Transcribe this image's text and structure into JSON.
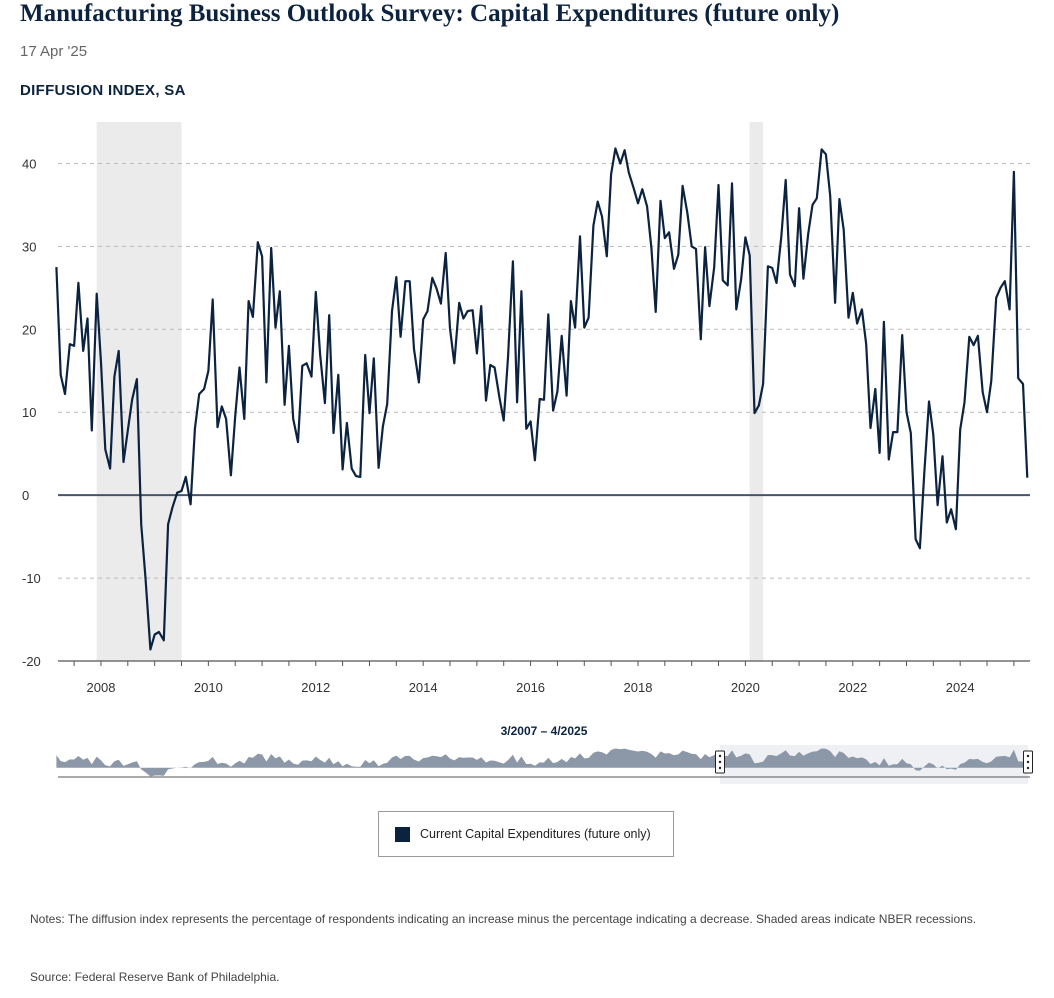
{
  "header": {
    "title": "Manufacturing Business Outlook Survey: Capital Expenditures (future only)",
    "date": "17 Apr '25",
    "subtitle": "DIFFUSION INDEX, SA"
  },
  "navigator": {
    "range_label": "3/2007 – 4/2025"
  },
  "legend": {
    "label": "Current Capital Expenditures (future only)"
  },
  "notes": "Notes: The diffusion index represents the percentage of respondents indicating an increase minus the percentage indicating a decrease. Shaded areas indicate NBER recessions.",
  "source": "Source: Federal Reserve Bank of Philadelphia.",
  "colors": {
    "line": "#0c2340",
    "recession": "#ebebeb",
    "grid": "#bbbbbb",
    "navigator": "#8c98a8",
    "zero_line": "#47556b"
  },
  "chart_data": {
    "type": "line",
    "title": "Manufacturing Business Outlook Survey: Capital Expenditures (future only)",
    "ylabel": "DIFFUSION INDEX, SA",
    "ylim": [
      -20,
      45
    ],
    "yticks": [
      40,
      30,
      20,
      10,
      0,
      -10,
      -20
    ],
    "xlim": [
      2007.2,
      2025.3
    ],
    "xticks": [
      2008,
      2010,
      2012,
      2014,
      2016,
      2018,
      2020,
      2022,
      2024
    ],
    "recessions": [
      [
        2007.92,
        2009.5
      ],
      [
        2020.08,
        2020.33
      ]
    ],
    "series": [
      {
        "name": "Current Capital Expenditures (future only)",
        "points": [
          [
            2007.17,
            27.5
          ],
          [
            2007.25,
            14.5
          ],
          [
            2007.33,
            12.2
          ],
          [
            2007.42,
            18.2
          ],
          [
            2007.5,
            18.0
          ],
          [
            2007.58,
            25.6
          ],
          [
            2007.67,
            17.4
          ],
          [
            2007.75,
            21.3
          ],
          [
            2007.83,
            7.8
          ],
          [
            2007.92,
            24.3
          ],
          [
            2008.0,
            16.0
          ],
          [
            2008.08,
            5.5
          ],
          [
            2008.17,
            3.2
          ],
          [
            2008.25,
            14.3
          ],
          [
            2008.33,
            17.4
          ],
          [
            2008.42,
            4.0
          ],
          [
            2008.5,
            7.8
          ],
          [
            2008.58,
            11.5
          ],
          [
            2008.67,
            14.0
          ],
          [
            2008.75,
            -3.5
          ],
          [
            2008.83,
            -10.0
          ],
          [
            2008.92,
            -18.6
          ],
          [
            2009.0,
            -16.8
          ],
          [
            2009.08,
            -16.5
          ],
          [
            2009.17,
            -17.5
          ],
          [
            2009.25,
            -3.5
          ],
          [
            2009.33,
            -1.5
          ],
          [
            2009.42,
            0.3
          ],
          [
            2009.5,
            0.5
          ],
          [
            2009.58,
            2.2
          ],
          [
            2009.67,
            -1.1
          ],
          [
            2009.75,
            8.0
          ],
          [
            2009.83,
            12.2
          ],
          [
            2009.92,
            12.8
          ],
          [
            2010.0,
            15.0
          ],
          [
            2010.08,
            23.6
          ],
          [
            2010.17,
            8.2
          ],
          [
            2010.25,
            10.7
          ],
          [
            2010.33,
            9.2
          ],
          [
            2010.42,
            2.4
          ],
          [
            2010.5,
            9.5
          ],
          [
            2010.58,
            15.4
          ],
          [
            2010.67,
            9.2
          ],
          [
            2010.75,
            23.4
          ],
          [
            2010.83,
            21.5
          ],
          [
            2010.92,
            30.5
          ],
          [
            2011.0,
            28.8
          ],
          [
            2011.08,
            13.6
          ],
          [
            2011.17,
            29.8
          ],
          [
            2011.25,
            20.2
          ],
          [
            2011.33,
            24.6
          ],
          [
            2011.42,
            10.9
          ],
          [
            2011.5,
            18.0
          ],
          [
            2011.58,
            9.2
          ],
          [
            2011.67,
            6.4
          ],
          [
            2011.75,
            15.6
          ],
          [
            2011.83,
            15.9
          ],
          [
            2011.92,
            14.3
          ],
          [
            2012.0,
            24.5
          ],
          [
            2012.08,
            17.0
          ],
          [
            2012.17,
            11.1
          ],
          [
            2012.25,
            21.7
          ],
          [
            2012.33,
            7.5
          ],
          [
            2012.42,
            14.5
          ],
          [
            2012.5,
            3.1
          ],
          [
            2012.58,
            8.7
          ],
          [
            2012.67,
            3.2
          ],
          [
            2012.75,
            2.3
          ],
          [
            2012.83,
            2.2
          ],
          [
            2012.92,
            16.9
          ],
          [
            2013.0,
            9.9
          ],
          [
            2013.08,
            16.5
          ],
          [
            2013.17,
            3.3
          ],
          [
            2013.25,
            8.3
          ],
          [
            2013.33,
            11.0
          ],
          [
            2013.42,
            22.2
          ],
          [
            2013.5,
            26.3
          ],
          [
            2013.58,
            19.1
          ],
          [
            2013.67,
            25.8
          ],
          [
            2013.75,
            25.8
          ],
          [
            2013.83,
            17.6
          ],
          [
            2013.92,
            13.6
          ],
          [
            2014.0,
            21.2
          ],
          [
            2014.08,
            22.2
          ],
          [
            2014.17,
            26.2
          ],
          [
            2014.25,
            24.9
          ],
          [
            2014.33,
            23.1
          ],
          [
            2014.42,
            29.2
          ],
          [
            2014.5,
            20.1
          ],
          [
            2014.58,
            15.9
          ],
          [
            2014.67,
            23.2
          ],
          [
            2014.75,
            21.3
          ],
          [
            2014.83,
            22.2
          ],
          [
            2014.92,
            22.3
          ],
          [
            2015.0,
            17.1
          ],
          [
            2015.08,
            22.8
          ],
          [
            2015.17,
            11.4
          ],
          [
            2015.25,
            15.7
          ],
          [
            2015.33,
            15.4
          ],
          [
            2015.42,
            11.8
          ],
          [
            2015.5,
            9.0
          ],
          [
            2015.58,
            16.6
          ],
          [
            2015.67,
            28.2
          ],
          [
            2015.75,
            11.2
          ],
          [
            2015.83,
            24.6
          ],
          [
            2015.92,
            8.0
          ],
          [
            2016.0,
            8.9
          ],
          [
            2016.08,
            4.2
          ],
          [
            2016.17,
            11.6
          ],
          [
            2016.25,
            11.5
          ],
          [
            2016.33,
            21.8
          ],
          [
            2016.42,
            10.2
          ],
          [
            2016.5,
            12.5
          ],
          [
            2016.58,
            19.2
          ],
          [
            2016.67,
            12.0
          ],
          [
            2016.75,
            23.4
          ],
          [
            2016.83,
            20.2
          ],
          [
            2016.92,
            31.2
          ],
          [
            2017.0,
            20.2
          ],
          [
            2017.08,
            21.4
          ],
          [
            2017.17,
            32.5
          ],
          [
            2017.25,
            35.4
          ],
          [
            2017.33,
            33.6
          ],
          [
            2017.42,
            28.8
          ],
          [
            2017.5,
            38.7
          ],
          [
            2017.58,
            41.8
          ],
          [
            2017.67,
            40.0
          ],
          [
            2017.75,
            41.6
          ],
          [
            2017.83,
            38.9
          ],
          [
            2017.92,
            37.0
          ],
          [
            2018.0,
            35.2
          ],
          [
            2018.08,
            36.9
          ],
          [
            2018.17,
            34.8
          ],
          [
            2018.25,
            29.8
          ],
          [
            2018.33,
            22.1
          ],
          [
            2018.42,
            35.5
          ],
          [
            2018.5,
            31.0
          ],
          [
            2018.58,
            31.7
          ],
          [
            2018.67,
            27.3
          ],
          [
            2018.75,
            29.0
          ],
          [
            2018.83,
            37.3
          ],
          [
            2018.92,
            34.0
          ],
          [
            2019.0,
            30.0
          ],
          [
            2019.08,
            29.7
          ],
          [
            2019.17,
            18.8
          ],
          [
            2019.25,
            29.9
          ],
          [
            2019.33,
            22.8
          ],
          [
            2019.42,
            27.5
          ],
          [
            2019.5,
            37.4
          ],
          [
            2019.58,
            25.9
          ],
          [
            2019.67,
            25.3
          ],
          [
            2019.75,
            37.6
          ],
          [
            2019.83,
            22.4
          ],
          [
            2019.92,
            26.0
          ],
          [
            2020.0,
            31.1
          ],
          [
            2020.08,
            28.9
          ],
          [
            2020.17,
            9.9
          ],
          [
            2020.25,
            10.8
          ],
          [
            2020.33,
            13.4
          ],
          [
            2020.42,
            27.6
          ],
          [
            2020.5,
            27.4
          ],
          [
            2020.58,
            25.6
          ],
          [
            2020.67,
            31.3
          ],
          [
            2020.75,
            38.0
          ],
          [
            2020.83,
            26.6
          ],
          [
            2020.92,
            25.2
          ],
          [
            2021.0,
            34.6
          ],
          [
            2021.08,
            26.1
          ],
          [
            2021.17,
            31.5
          ],
          [
            2021.25,
            35.0
          ],
          [
            2021.33,
            35.8
          ],
          [
            2021.42,
            41.7
          ],
          [
            2021.5,
            41.1
          ],
          [
            2021.58,
            36.1
          ],
          [
            2021.67,
            23.2
          ],
          [
            2021.75,
            35.7
          ],
          [
            2021.83,
            32.0
          ],
          [
            2021.92,
            21.4
          ],
          [
            2022.0,
            24.4
          ],
          [
            2022.08,
            20.7
          ],
          [
            2022.17,
            22.4
          ],
          [
            2022.25,
            18.2
          ],
          [
            2022.33,
            8.1
          ],
          [
            2022.42,
            12.8
          ],
          [
            2022.5,
            5.1
          ],
          [
            2022.58,
            20.9
          ],
          [
            2022.67,
            4.3
          ],
          [
            2022.75,
            7.6
          ],
          [
            2022.83,
            7.6
          ],
          [
            2022.92,
            19.3
          ],
          [
            2023.0,
            10.0
          ],
          [
            2023.08,
            7.5
          ],
          [
            2023.17,
            -5.3
          ],
          [
            2023.25,
            -6.4
          ],
          [
            2023.33,
            2.5
          ],
          [
            2023.42,
            11.3
          ],
          [
            2023.5,
            7.3
          ],
          [
            2023.58,
            -1.2
          ],
          [
            2023.67,
            4.7
          ],
          [
            2023.75,
            -3.3
          ],
          [
            2023.83,
            -1.7
          ],
          [
            2023.92,
            -4.1
          ],
          [
            2024.0,
            7.9
          ],
          [
            2024.08,
            11.2
          ],
          [
            2024.17,
            19.1
          ],
          [
            2024.25,
            18.1
          ],
          [
            2024.33,
            19.2
          ],
          [
            2024.42,
            12.4
          ],
          [
            2024.5,
            10.0
          ],
          [
            2024.58,
            13.8
          ],
          [
            2024.67,
            23.8
          ],
          [
            2024.75,
            25.0
          ],
          [
            2024.83,
            25.8
          ],
          [
            2024.92,
            22.4
          ],
          [
            2025.0,
            39.0
          ],
          [
            2025.08,
            14.1
          ],
          [
            2025.17,
            13.4
          ],
          [
            2025.25,
            2.1
          ]
        ]
      }
    ]
  }
}
